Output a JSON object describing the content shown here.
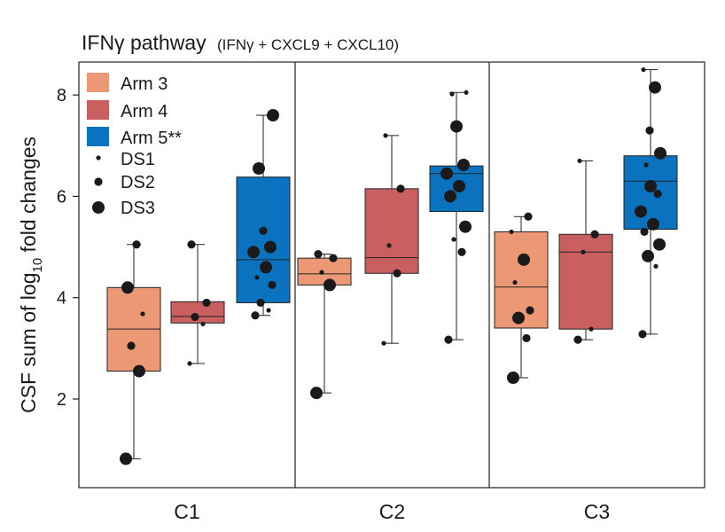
{
  "chart_data": {
    "type": "box",
    "title": "IFNγ pathway",
    "subtitle": "(IFNγ + CXCL9 + CXCL10)",
    "ylabel_prefix": "CSF sum of log",
    "ylabel_sub": "10",
    "ylabel_suffix": " fold changes",
    "ylim": [
      0.25,
      8.65
    ],
    "yticks": [
      2,
      4,
      6,
      8
    ],
    "panels": [
      "C1",
      "C2",
      "C3"
    ],
    "legend": {
      "position": "top-left",
      "arms": [
        {
          "label": "Arm 3",
          "color": "#ec9875"
        },
        {
          "label": "Arm 4",
          "color": "#c9605f"
        },
        {
          "label": "Arm 5**",
          "color": "#0b72bf"
        }
      ],
      "sizes": [
        {
          "label": "DS1"
        },
        {
          "label": "DS2"
        },
        {
          "label": "DS3"
        }
      ]
    },
    "boxes": [
      {
        "panel": "C1",
        "arm": "Arm 3",
        "min": 0.82,
        "q1": 2.55,
        "median": 3.38,
        "q3": 4.2,
        "max": 5.05,
        "points": [
          [
            0.82,
            3
          ],
          [
            2.55,
            3
          ],
          [
            3.05,
            2
          ],
          [
            3.68,
            1
          ],
          [
            4.2,
            3
          ],
          [
            5.05,
            2
          ]
        ]
      },
      {
        "panel": "C1",
        "arm": "Arm 4",
        "min": 2.7,
        "q1": 3.5,
        "median": 3.63,
        "q3": 3.92,
        "max": 5.05,
        "points": [
          [
            2.7,
            1
          ],
          [
            3.48,
            1
          ],
          [
            3.62,
            2
          ],
          [
            3.9,
            2
          ],
          [
            5.05,
            2
          ]
        ]
      },
      {
        "panel": "C1",
        "arm": "Arm 5**",
        "min": 3.65,
        "q1": 3.9,
        "median": 4.75,
        "q3": 6.38,
        "max": 7.6,
        "points": [
          [
            3.65,
            2
          ],
          [
            3.75,
            1
          ],
          [
            3.9,
            2
          ],
          [
            4.25,
            2
          ],
          [
            4.4,
            1
          ],
          [
            4.6,
            3
          ],
          [
            4.9,
            3
          ],
          [
            5.0,
            3
          ],
          [
            5.32,
            2
          ],
          [
            6.55,
            3
          ],
          [
            7.6,
            3
          ]
        ]
      },
      {
        "panel": "C2",
        "arm": "Arm 3",
        "min": 2.12,
        "q1": 4.25,
        "median": 4.47,
        "q3": 4.78,
        "max": 4.86,
        "points": [
          [
            2.12,
            3
          ],
          [
            4.25,
            3
          ],
          [
            4.5,
            1
          ],
          [
            4.78,
            2
          ],
          [
            4.86,
            2
          ]
        ]
      },
      {
        "panel": "C2",
        "arm": "Arm 4",
        "min": 3.1,
        "q1": 4.48,
        "median": 4.79,
        "q3": 6.15,
        "max": 7.2,
        "points": [
          [
            3.1,
            1
          ],
          [
            4.48,
            2
          ],
          [
            5.03,
            1
          ],
          [
            6.15,
            2
          ],
          [
            7.2,
            1
          ]
        ]
      },
      {
        "panel": "C2",
        "arm": "Arm 5**",
        "min": 3.17,
        "q1": 5.7,
        "median": 6.45,
        "q3": 6.6,
        "max": 8.05,
        "points": [
          [
            3.17,
            2
          ],
          [
            4.9,
            2
          ],
          [
            5.15,
            1
          ],
          [
            5.4,
            3
          ],
          [
            6.0,
            3
          ],
          [
            6.2,
            3
          ],
          [
            6.45,
            3
          ],
          [
            6.62,
            3
          ],
          [
            7.38,
            3
          ],
          [
            8.02,
            1
          ],
          [
            8.05,
            1
          ]
        ]
      },
      {
        "panel": "C3",
        "arm": "Arm 3",
        "min": 2.42,
        "q1": 3.4,
        "median": 4.21,
        "q3": 5.3,
        "max": 5.6,
        "points": [
          [
            2.42,
            3
          ],
          [
            3.2,
            2
          ],
          [
            3.6,
            3
          ],
          [
            3.75,
            2
          ],
          [
            4.3,
            1
          ],
          [
            4.75,
            3
          ],
          [
            5.3,
            1
          ],
          [
            5.6,
            2
          ]
        ]
      },
      {
        "panel": "C3",
        "arm": "Arm 4",
        "min": 3.17,
        "q1": 3.38,
        "median": 4.9,
        "q3": 5.25,
        "max": 6.7,
        "points": [
          [
            3.17,
            2
          ],
          [
            3.38,
            1
          ],
          [
            4.9,
            1
          ],
          [
            5.25,
            2
          ],
          [
            6.7,
            1
          ]
        ]
      },
      {
        "panel": "C3",
        "arm": "Arm 5**",
        "min": 3.28,
        "q1": 5.35,
        "median": 6.3,
        "q3": 6.8,
        "max": 8.5,
        "points": [
          [
            3.28,
            2
          ],
          [
            4.62,
            1
          ],
          [
            4.82,
            3
          ],
          [
            5.05,
            3
          ],
          [
            5.3,
            2
          ],
          [
            5.45,
            3
          ],
          [
            5.7,
            3
          ],
          [
            6.05,
            2
          ],
          [
            6.2,
            3
          ],
          [
            6.62,
            1
          ],
          [
            6.85,
            3
          ],
          [
            7.3,
            2
          ],
          [
            8.15,
            3
          ],
          [
            8.5,
            1
          ]
        ]
      }
    ]
  }
}
